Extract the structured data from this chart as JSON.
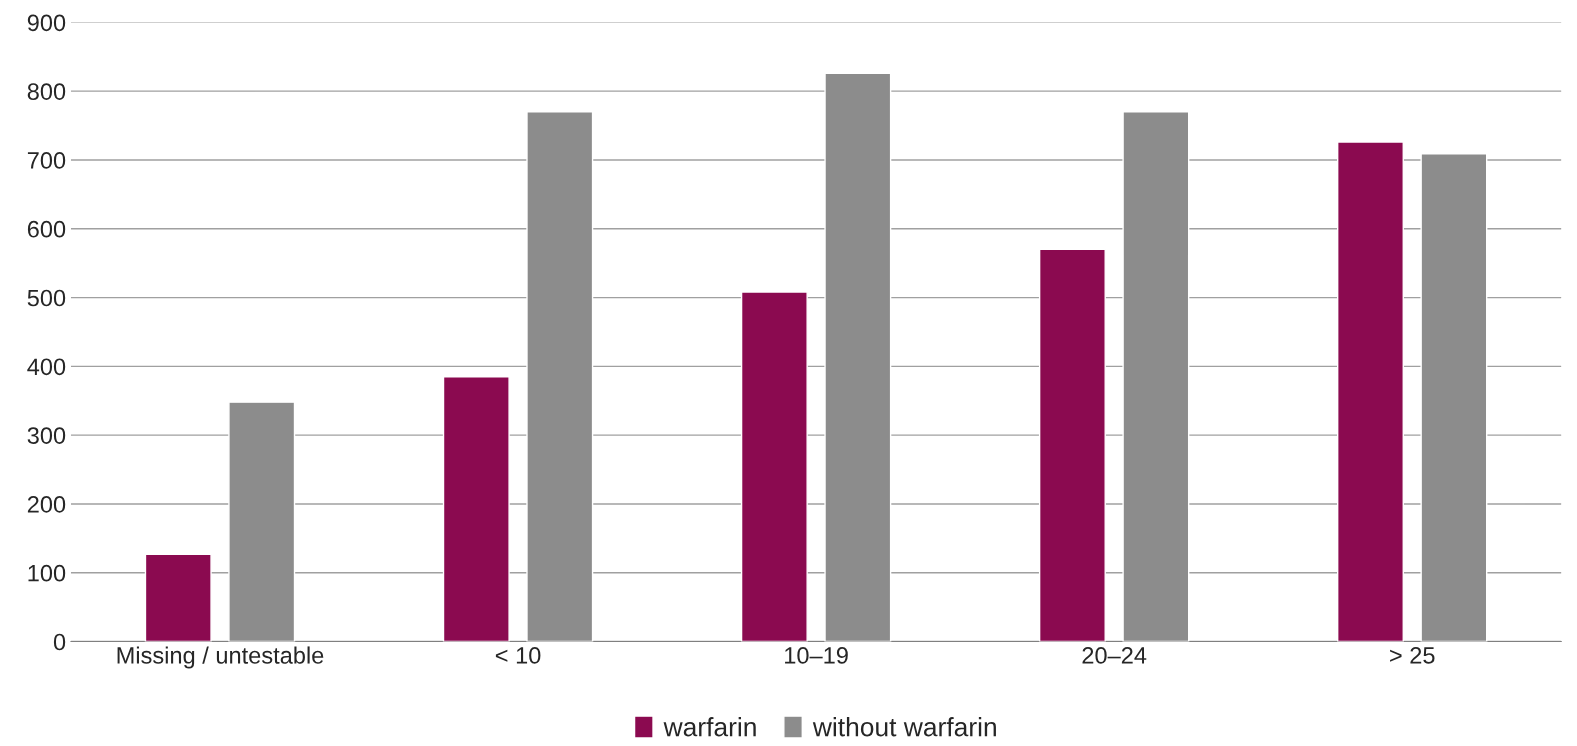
{
  "chart_data": {
    "type": "bar",
    "categories": [
      "Missing / untestable",
      "< 10",
      "10–19",
      "20–24",
      "> 25"
    ],
    "series": [
      {
        "name": "warfarin",
        "color": "#8b0a50",
        "values": [
          127,
          385,
          508,
          570,
          726
        ]
      },
      {
        "name": "without warfarin",
        "color": "#8c8c8c",
        "values": [
          348,
          770,
          826,
          770,
          709
        ]
      }
    ],
    "ylim": [
      0,
      900
    ],
    "yticks": [
      0,
      100,
      200,
      300,
      400,
      500,
      600,
      700,
      800,
      900
    ],
    "grid": "y",
    "legend": "bottom"
  }
}
